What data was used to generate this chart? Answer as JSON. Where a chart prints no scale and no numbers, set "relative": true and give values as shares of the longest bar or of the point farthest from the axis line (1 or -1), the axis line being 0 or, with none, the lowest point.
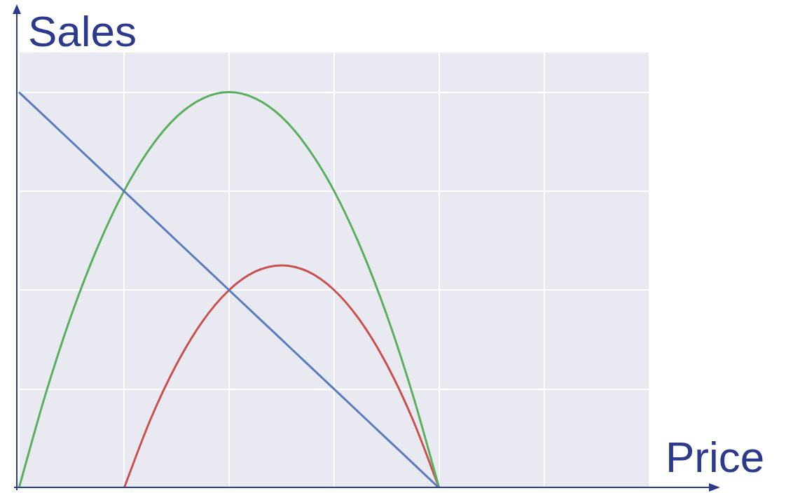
{
  "chart_data": {
    "type": "line",
    "xlabel": "Price",
    "ylabel": "Sales",
    "relative": true,
    "grid": true,
    "marker": "none",
    "line_style": "solid",
    "categories": [
      null,
      null,
      null,
      null,
      null,
      null,
      null,
      null,
      null,
      null,
      null,
      null,
      null,
      null,
      null,
      null,
      null,
      null,
      null,
      null,
      null,
      null,
      null,
      null,
      null
    ],
    "series": [
      {
        "color": "#5b7bbf",
        "values": [
          1,
          0.9375,
          0.875,
          0.8125,
          0.75,
          0.6875,
          0.625,
          0.5625,
          0.5,
          0.4375,
          0.375,
          0.3125,
          0.25,
          0.1875,
          0.125,
          0.0625,
          0,
          null,
          null,
          null,
          null,
          null,
          null,
          null,
          null
        ]
      },
      {
        "color": "#5aaf5f",
        "values": [
          0,
          0.234,
          0.4375,
          0.609,
          0.75,
          0.859,
          0.9375,
          0.984,
          1,
          0.984,
          0.9375,
          0.859,
          0.75,
          0.609,
          0.4375,
          0.234,
          0,
          null,
          null,
          null,
          null,
          null,
          null,
          null,
          null
        ]
      },
      {
        "color": "#c9504f",
        "values": [
          null,
          null,
          null,
          null,
          0,
          0.172,
          0.3125,
          0.422,
          0.5,
          0.547,
          0.5625,
          0.547,
          0.5,
          0.422,
          0.3125,
          0.172,
          0,
          null,
          null,
          null,
          null,
          null,
          null,
          null,
          null
        ]
      }
    ]
  }
}
